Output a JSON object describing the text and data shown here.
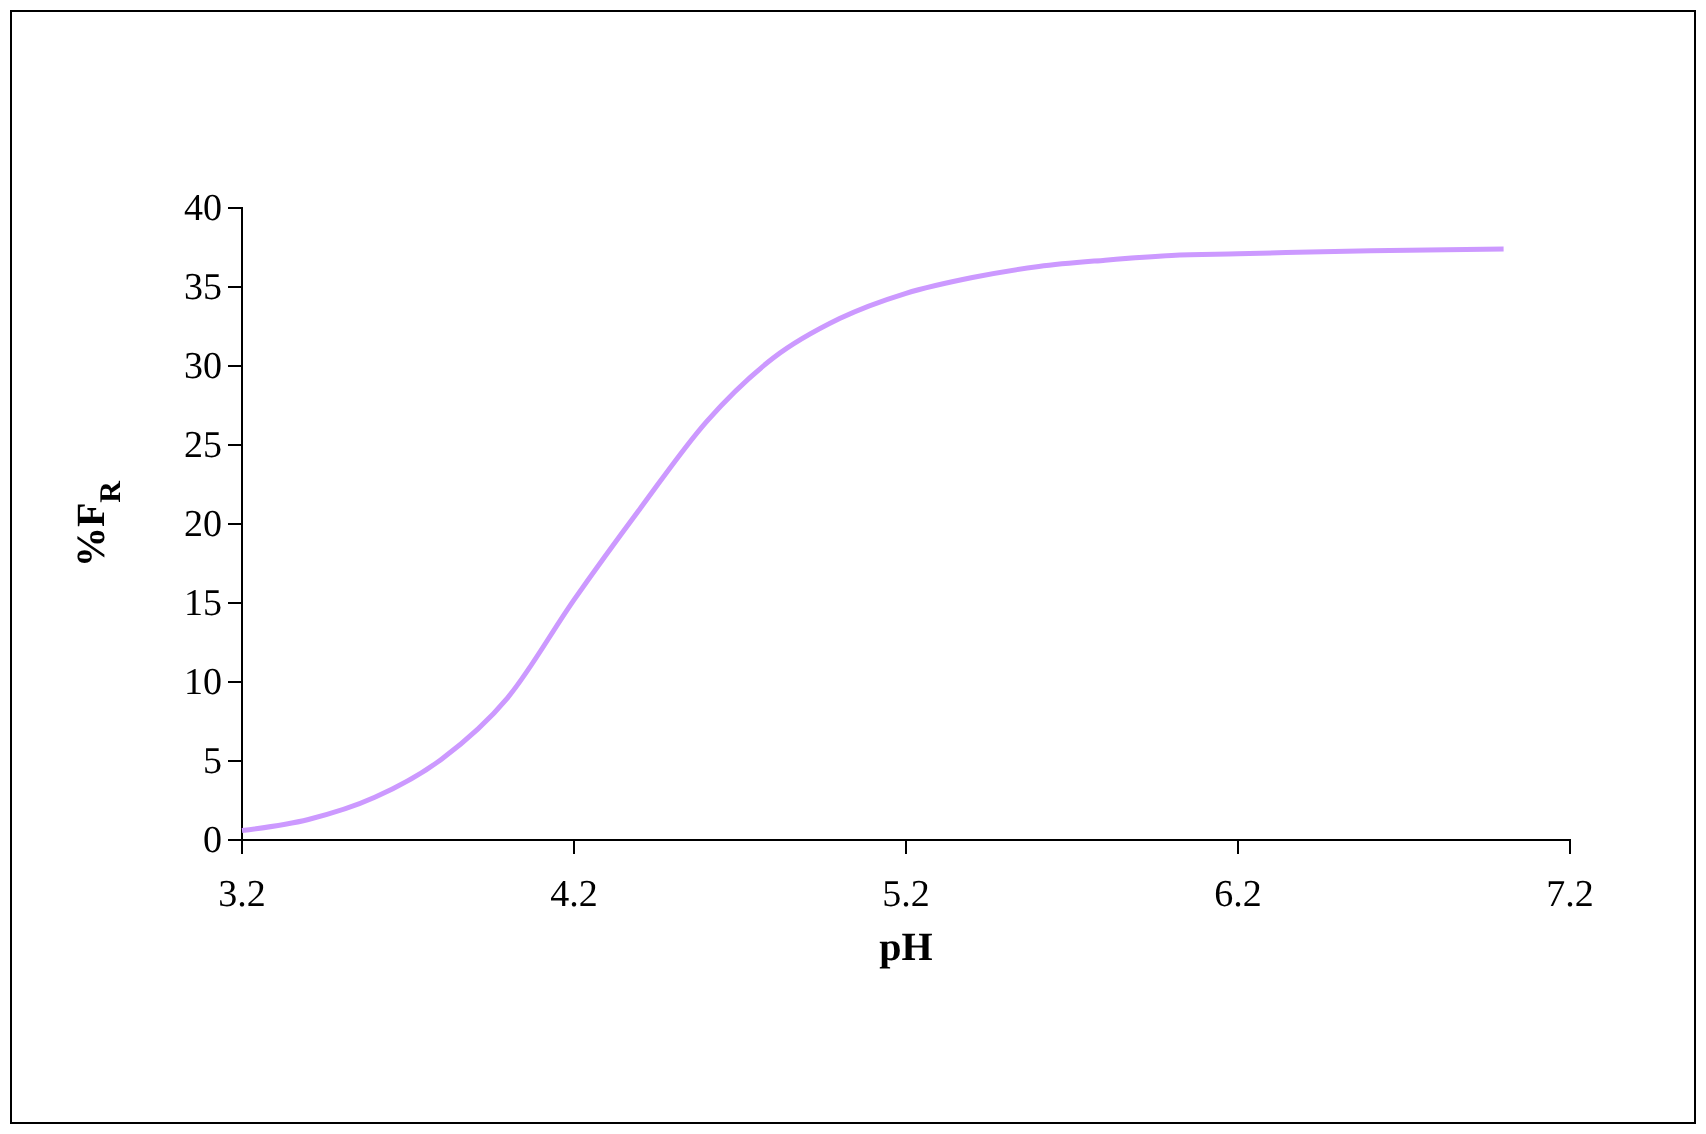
{
  "chart_data": {
    "type": "line",
    "xlabel": "pH",
    "ylabel": "%F$_{R}$",
    "x": [
      3.2,
      3.4,
      3.6,
      3.8,
      4.0,
      4.2,
      4.4,
      4.6,
      4.8,
      5.0,
      5.2,
      5.4,
      5.6,
      5.8,
      6.0,
      6.2,
      6.6,
      7.0
    ],
    "series": [
      {
        "color": "#cc99ff",
        "values": [
          0.6,
          1.3,
          2.7,
          5.1,
          9,
          15.2,
          21,
          26.5,
          30.5,
          33,
          34.6,
          35.6,
          36.3,
          36.7,
          37,
          37.1,
          37.3,
          37.4
        ]
      }
    ],
    "xlim": [
      3.2,
      7.2
    ],
    "xticks": [
      3.2,
      4.2,
      5.2,
      6.2,
      7.2
    ],
    "ylim": [
      0,
      40
    ],
    "yticks": [
      0,
      5,
      10,
      15,
      20,
      25,
      30,
      35,
      40
    ],
    "grid": false,
    "marker": "none",
    "line_style": "solid"
  }
}
